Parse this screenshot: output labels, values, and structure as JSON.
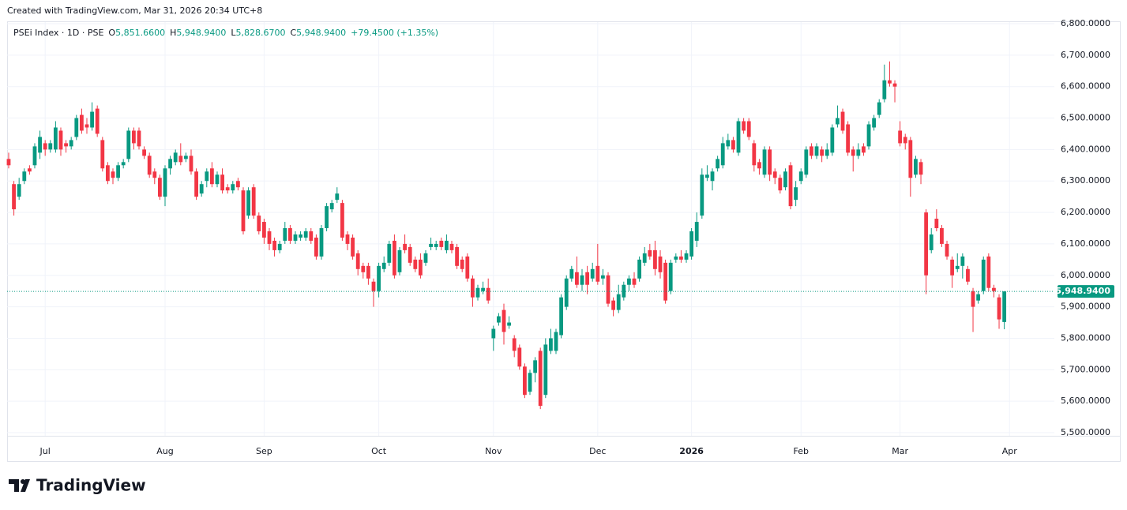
{
  "chart_data": {
    "type": "candlestick",
    "attribution": "Created with TradingView.com, Mar 31, 2026 20:34 UTC+8",
    "logo_text": "TradingView",
    "legend": {
      "symbol": "PSEi Index · 1D · PSE",
      "items": [
        {
          "label": "O",
          "text": "5,851.6600"
        },
        {
          "label": "H",
          "text": "5,948.9400"
        },
        {
          "label": "L",
          "text": "5,828.6700"
        },
        {
          "label": "C",
          "text": "5,948.9400"
        }
      ],
      "change": "+79.4500 (+1.35%)"
    },
    "up_color": "#089981",
    "down_color": "#f23645",
    "grid": true,
    "xlim": [
      -0.3,
      200.6
    ],
    "xticks": [
      {
        "value": 7,
        "label": "Jul"
      },
      {
        "value": 30,
        "label": "Aug"
      },
      {
        "value": 49,
        "label": "Sep"
      },
      {
        "value": 71,
        "label": "Oct"
      },
      {
        "value": 93,
        "label": "Nov"
      },
      {
        "value": 113,
        "label": "Dec"
      },
      {
        "value": 131,
        "label": "2026"
      },
      {
        "value": 152,
        "label": "Feb"
      },
      {
        "value": 171,
        "label": "Mar"
      },
      {
        "value": 192,
        "label": "Apr"
      }
    ],
    "ylim": [
      5490,
      6805
    ],
    "yticks": [
      {
        "value": 5500,
        "label": "5,500.0000"
      },
      {
        "value": 5600,
        "label": "5,600.0000"
      },
      {
        "value": 5700,
        "label": "5,700.0000"
      },
      {
        "value": 5800,
        "label": "5,800.0000"
      },
      {
        "value": 5900,
        "label": "5,900.0000"
      },
      {
        "value": 6000,
        "label": "6,000.0000"
      },
      {
        "value": 6100,
        "label": "6,100.0000"
      },
      {
        "value": 6200,
        "label": "6,200.0000"
      },
      {
        "value": 6300,
        "label": "6,300.0000"
      },
      {
        "value": 6400,
        "label": "6,400.0000"
      },
      {
        "value": 6500,
        "label": "6,500.0000"
      },
      {
        "value": 6600,
        "label": "6,600.0000"
      },
      {
        "value": 6700,
        "label": "6,700.0000"
      },
      {
        "value": 6800,
        "label": "6,800.0000"
      }
    ],
    "last_price": {
      "value": 5948.94,
      "label": "5,948.9400"
    },
    "open": [
      6370,
      6290,
      6250,
      6300,
      6340,
      6350,
      6390,
      6420,
      6400,
      6400,
      6460,
      6420,
      6410,
      6440,
      6510,
      6480,
      6470,
      6530,
      6430,
      6350,
      6330,
      6310,
      6350,
      6370,
      6460,
      6460,
      6400,
      6380,
      6330,
      6310,
      6250,
      6340,
      6360,
      6380,
      6370,
      6380,
      6330,
      6260,
      6300,
      6340,
      6290,
      6320,
      6280,
      6270,
      6300,
      6270,
      6190,
      6280,
      6190,
      6170,
      6140,
      6110,
      6080,
      6110,
      6150,
      6110,
      6120,
      6120,
      6140,
      6120,
      6060,
      6150,
      6210,
      6240,
      6230,
      6130,
      6120,
      6070,
      6030,
      6030,
      5980,
      5950,
      6020,
      6040,
      6110,
      6010,
      6100,
      6090,
      6050,
      6050,
      6040,
      6090,
      6090,
      6110,
      6080,
      6100,
      6090,
      6050,
      6060,
      5990,
      5930,
      5950,
      5960,
      5800,
      5850,
      5890,
      5840,
      5800,
      5770,
      5710,
      5630,
      5690,
      5760,
      5620,
      5760,
      5760,
      5810,
      5900,
      5990,
      6010,
      5970,
      6010,
      5990,
      6030,
      5990,
      6000,
      5920,
      5890,
      5930,
      5970,
      5990,
      5990,
      6040,
      6080,
      6080,
      6060,
      6040,
      5950,
      6050,
      6060,
      6050,
      6060,
      6110,
      6190,
      6310,
      6300,
      6340,
      6350,
      6410,
      6430,
      6390,
      6490,
      6490,
      6420,
      6360,
      6320,
      6400,
      6330,
      6310,
      6280,
      6350,
      6240,
      6300,
      6320,
      6410,
      6380,
      6400,
      6380,
      6390,
      6480,
      6520,
      6480,
      6400,
      6380,
      6410,
      6410,
      6470,
      6510,
      6560,
      6620,
      6610,
      6460,
      6440,
      6430,
      6320,
      6360,
      6200,
      6080,
      6180,
      6150,
      6100,
      6050,
      6020,
      6030,
      6020,
      5950,
      5920,
      5950,
      6060,
      5960,
      5930,
      5851.66
    ],
    "high": [
      6390,
      6300,
      6310,
      6340,
      6350,
      6420,
      6460,
      6430,
      6430,
      6490,
      6470,
      6430,
      6440,
      6510,
      6530,
      6500,
      6550,
      6540,
      6440,
      6360,
      6340,
      6360,
      6370,
      6470,
      6470,
      6470,
      6410,
      6390,
      6340,
      6320,
      6350,
      6380,
      6400,
      6420,
      6390,
      6400,
      6340,
      6300,
      6340,
      6360,
      6330,
      6340,
      6290,
      6300,
      6310,
      6280,
      6280,
      6290,
      6200,
      6180,
      6150,
      6120,
      6110,
      6170,
      6160,
      6140,
      6140,
      6150,
      6150,
      6130,
      6160,
      6230,
      6240,
      6280,
      6240,
      6140,
      6130,
      6080,
      6040,
      6040,
      5990,
      6040,
      6060,
      6110,
      6130,
      6090,
      6130,
      6100,
      6060,
      6070,
      6080,
      6120,
      6110,
      6120,
      6130,
      6110,
      6100,
      6060,
      6070,
      6000,
      5970,
      5980,
      5990,
      5840,
      5880,
      5910,
      5870,
      5810,
      5780,
      5720,
      5700,
      5740,
      5770,
      5800,
      5830,
      5830,
      5940,
      6000,
      6030,
      6060,
      6020,
      6030,
      6040,
      6100,
      6020,
      6010,
      5930,
      5970,
      5980,
      6000,
      6010,
      6060,
      6090,
      6100,
      6110,
      6080,
      6050,
      6050,
      6070,
      6080,
      6080,
      6150,
      6200,
      6340,
      6350,
      6340,
      6380,
      6440,
      6450,
      6440,
      6500,
      6500,
      6500,
      6430,
      6370,
      6410,
      6410,
      6340,
      6320,
      6340,
      6360,
      6300,
      6340,
      6410,
      6420,
      6420,
      6410,
      6420,
      6480,
      6540,
      6530,
      6490,
      6410,
      6420,
      6420,
      6490,
      6510,
      6560,
      6670,
      6680,
      6620,
      6490,
      6450,
      6440,
      6380,
      6370,
      6210,
      6150,
      6210,
      6160,
      6110,
      6060,
      6070,
      6070,
      6030,
      5960,
      5950,
      6060,
      6070,
      5970,
      5940,
      5948.94
    ],
    "low": [
      6340,
      6190,
      6240,
      6290,
      6320,
      6340,
      6370,
      6380,
      6390,
      6390,
      6380,
      6390,
      6400,
      6430,
      6450,
      6450,
      6460,
      6440,
      6330,
      6290,
      6290,
      6300,
      6340,
      6360,
      6400,
      6400,
      6370,
      6310,
      6290,
      6240,
      6220,
      6320,
      6350,
      6350,
      6360,
      6320,
      6240,
      6250,
      6280,
      6280,
      6280,
      6260,
      6260,
      6260,
      6270,
      6130,
      6180,
      6180,
      6130,
      6100,
      6080,
      6060,
      6070,
      6100,
      6100,
      6100,
      6110,
      6110,
      6100,
      6050,
      6050,
      6140,
      6200,
      6230,
      6110,
      6080,
      6050,
      6000,
      5990,
      5970,
      5900,
      5930,
      6010,
      6030,
      5990,
      6000,
      6070,
      6030,
      6010,
      5990,
      6030,
      6080,
      6080,
      6080,
      6070,
      6070,
      6020,
      6010,
      5980,
      5900,
      5920,
      5940,
      5910,
      5760,
      5840,
      5780,
      5830,
      5740,
      5700,
      5610,
      5620,
      5660,
      5575,
      5610,
      5750,
      5750,
      5800,
      5890,
      5980,
      5960,
      5950,
      5940,
      5980,
      5970,
      5970,
      5900,
      5870,
      5880,
      5920,
      5950,
      5960,
      5980,
      6030,
      6050,
      6000,
      5990,
      5910,
      5940,
      6040,
      6040,
      6040,
      6050,
      6090,
      6180,
      6300,
      6270,
      6330,
      6340,
      6400,
      6390,
      6380,
      6450,
      6430,
      6330,
      6320,
      6310,
      6300,
      6290,
      6260,
      6270,
      6210,
      6220,
      6290,
      6310,
      6370,
      6370,
      6360,
      6370,
      6380,
      6470,
      6450,
      6380,
      6330,
      6370,
      6380,
      6400,
      6460,
      6500,
      6550,
      6600,
      6550,
      6410,
      6400,
      6250,
      6310,
      6290,
      5940,
      6070,
      6140,
      6090,
      6050,
      5960,
      6010,
      5990,
      5970,
      5820,
      5910,
      5940,
      5950,
      5930,
      5830,
      5828.67
    ],
    "close": [
      6350,
      6210,
      6290,
      6330,
      6330,
      6410,
      6440,
      6400,
      6420,
      6470,
      6400,
      6410,
      6430,
      6500,
      6460,
      6470,
      6520,
      6450,
      6340,
      6300,
      6310,
      6350,
      6360,
      6460,
      6420,
      6410,
      6380,
      6320,
      6310,
      6250,
      6340,
      6370,
      6390,
      6360,
      6380,
      6330,
      6250,
      6290,
      6330,
      6290,
      6320,
      6270,
      6270,
      6290,
      6280,
      6140,
      6270,
      6190,
      6140,
      6120,
      6100,
      6080,
      6100,
      6150,
      6110,
      6130,
      6130,
      6140,
      6110,
      6060,
      6150,
      6220,
      6230,
      6260,
      6120,
      6100,
      6060,
      6020,
      6010,
      5990,
      5950,
      6030,
      6040,
      6100,
      6000,
      6080,
      6080,
      6040,
      6020,
      6000,
      6070,
      6100,
      6100,
      6090,
      6110,
      6080,
      6030,
      6020,
      5990,
      5930,
      5960,
      5960,
      5920,
      5830,
      5870,
      5820,
      5850,
      5760,
      5710,
      5620,
      5690,
      5730,
      5585,
      5780,
      5800,
      5820,
      5930,
      5990,
      6020,
      5970,
      6000,
      5970,
      6020,
      5980,
      6000,
      5910,
      5890,
      5940,
      5970,
      5990,
      5970,
      6050,
      6070,
      6060,
      6020,
      6010,
      5920,
      6040,
      6060,
      6050,
      6070,
      6140,
      6170,
      6320,
      6320,
      6330,
      6370,
      6420,
      6430,
      6400,
      6490,
      6460,
      6440,
      6350,
      6340,
      6400,
      6320,
      6310,
      6270,
      6330,
      6220,
      6280,
      6330,
      6400,
      6380,
      6410,
      6380,
      6400,
      6470,
      6500,
      6460,
      6390,
      6380,
      6400,
      6390,
      6480,
      6500,
      6550,
      6620,
      6610,
      6600,
      6420,
      6420,
      6310,
      6370,
      6320,
      6000,
      6130,
      6150,
      6100,
      6060,
      6000,
      6030,
      6060,
      5980,
      5900,
      5940,
      6050,
      5960,
      5950,
      5860,
      5948.94
    ]
  }
}
